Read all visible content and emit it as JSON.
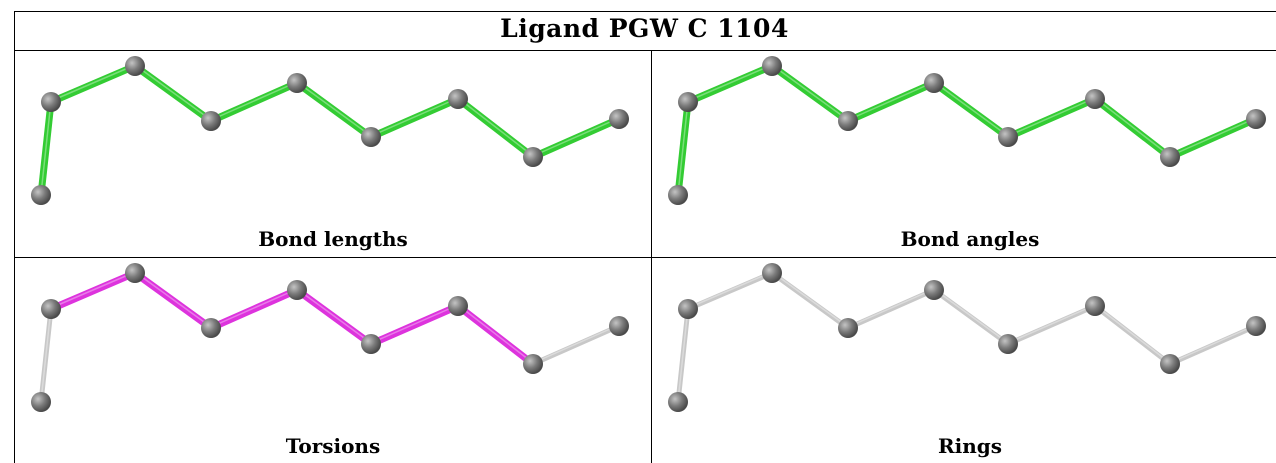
{
  "title": "Ligand PGW C 1104",
  "colors": {
    "default_bond": "#c8c8c8",
    "atom": "#777777"
  },
  "panels": [
    {
      "caption": "Bond lengths",
      "highlight_color": "#33cc33",
      "highlight_bonds": [
        0,
        1,
        2,
        3,
        4,
        5,
        6,
        7,
        8,
        9
      ]
    },
    {
      "caption": "Bond angles",
      "highlight_color": "#33cc33",
      "highlight_bonds": [
        0,
        1,
        2,
        3,
        4,
        5,
        6,
        7,
        8,
        9
      ]
    },
    {
      "caption": "Torsions",
      "highlight_color": "#dd33dd",
      "highlight_bonds": [
        1,
        2,
        3,
        4,
        5,
        6,
        7
      ]
    },
    {
      "caption": "Rings",
      "highlight_color": "#c8c8c8",
      "highlight_bonds": []
    }
  ]
}
